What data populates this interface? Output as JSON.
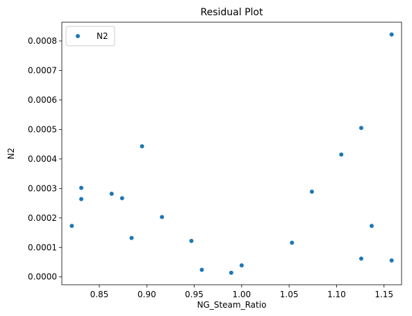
{
  "chart_data": {
    "type": "scatter",
    "title": "Residual Plot",
    "xlabel": "NG_Steam_Ratio",
    "ylabel": "N2",
    "xlim": [
      0.8105,
      1.1685
    ],
    "ylim": [
      -2.65e-05,
      0.0008635
    ],
    "xticks": [
      0.85,
      0.9,
      0.95,
      1.0,
      1.05,
      1.1,
      1.15
    ],
    "xtick_labels": [
      "0.85",
      "0.90",
      "0.95",
      "1.00",
      "1.05",
      "1.10",
      "1.15"
    ],
    "yticks": [
      0.0,
      0.0001,
      0.0002,
      0.0003,
      0.0004,
      0.0005,
      0.0006,
      0.0007,
      0.0008
    ],
    "ytick_labels": [
      "0.0000",
      "0.0001",
      "0.0002",
      "0.0003",
      "0.0004",
      "0.0005",
      "0.0006",
      "0.0007",
      "0.0008"
    ],
    "grid": false,
    "legend_position": "upper-left",
    "series": [
      {
        "name": "N2",
        "color": "#1f77b4",
        "marker": "circle",
        "x": [
          0.821,
          0.831,
          0.831,
          0.863,
          0.874,
          0.884,
          0.895,
          0.916,
          0.947,
          0.958,
          0.989,
          1.0,
          1.053,
          1.074,
          1.105,
          1.126,
          1.126,
          1.137,
          1.158,
          1.158
        ],
        "y": [
          0.000173,
          0.000302,
          0.000264,
          0.000282,
          0.000267,
          0.000132,
          0.000443,
          0.000203,
          0.000122,
          2.4e-05,
          1.4e-05,
          3.9e-05,
          0.000116,
          0.000289,
          0.000415,
          0.000505,
          6.2e-05,
          0.000173,
          0.000822,
          5.6e-05
        ]
      }
    ]
  }
}
